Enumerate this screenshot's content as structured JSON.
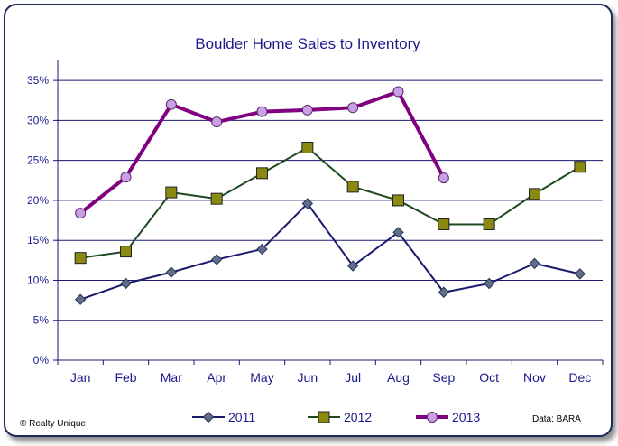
{
  "chart_data": {
    "type": "line",
    "title": "Boulder Home Sales to Inventory",
    "categories": [
      "Jan",
      "Feb",
      "Mar",
      "Apr",
      "May",
      "Jun",
      "Jul",
      "Aug",
      "Sep",
      "Oct",
      "Nov",
      "Dec"
    ],
    "y_ticks": [
      "0%",
      "5%",
      "10%",
      "15%",
      "20%",
      "25%",
      "30%",
      "35%"
    ],
    "ylim": [
      0,
      37.5
    ],
    "grid": "horizontal",
    "legend_placement": "bottom",
    "series": [
      {
        "name": "2011",
        "color": "#1a1a6e",
        "marker": "diamond",
        "values": [
          7.6,
          9.6,
          11.0,
          12.6,
          13.9,
          19.6,
          11.8,
          16.0,
          8.5,
          9.6,
          12.1,
          10.8
        ]
      },
      {
        "name": "2012",
        "color": "#1f4a1f",
        "marker": "square",
        "values": [
          12.8,
          13.6,
          21.0,
          20.2,
          23.4,
          26.6,
          21.7,
          20.0,
          17.0,
          17.0,
          20.8,
          24.2
        ]
      },
      {
        "name": "2013",
        "color": "#800080",
        "marker": "circle",
        "values": [
          18.4,
          22.9,
          32.0,
          29.8,
          31.1,
          31.3,
          31.6,
          33.6,
          22.8,
          null,
          null,
          null
        ]
      }
    ]
  },
  "footer": {
    "copyright": "© Realty Unique",
    "source": "Data: BARA"
  }
}
